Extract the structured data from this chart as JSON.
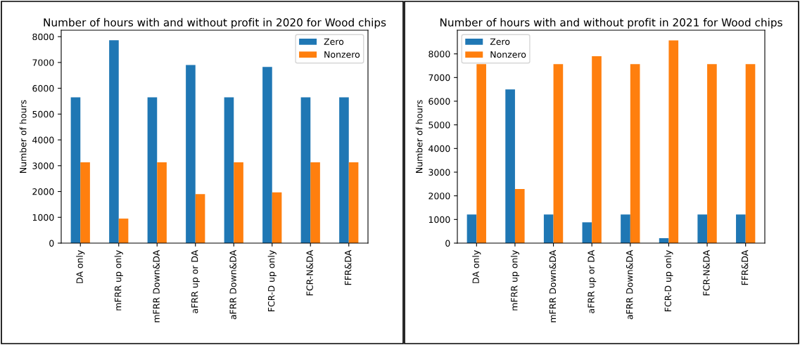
{
  "chart_data": [
    {
      "type": "bar",
      "title": "Number of hours with and without profit in 2020 for Wood chips",
      "ylabel": "Number of hours",
      "categories": [
        "DA only",
        "mFRR up only",
        "mFRR Down&DA",
        "aFRR up or DA",
        "aFRR Down&DA",
        "FCR-D up only",
        "FCR-N&DA",
        "FFR&DA"
      ],
      "series": [
        {
          "name": "Zero",
          "color": "#1f77b4",
          "values": [
            5650,
            7860,
            5650,
            6900,
            5650,
            6830,
            5650,
            5650
          ]
        },
        {
          "name": "Nonzero",
          "color": "#ff7f0e",
          "values": [
            3130,
            950,
            3130,
            1900,
            3130,
            1970,
            3130,
            3130
          ]
        }
      ],
      "ylim": [
        0,
        8250
      ],
      "yticks": [
        0,
        1000,
        2000,
        3000,
        4000,
        5000,
        6000,
        7000,
        8000
      ],
      "legend": "top right",
      "grid": false
    },
    {
      "type": "bar",
      "title": "Number of hours with and without profit in 2021 for Wood chips",
      "ylabel": "Number of hours",
      "categories": [
        "DA only",
        "mFRR up only",
        "mFRR Down&DA",
        "aFRR up or DA",
        "aFRR Down&DA",
        "FCR-D up only",
        "FCR-N&DA",
        "FFR&DA"
      ],
      "series": [
        {
          "name": "Zero",
          "color": "#1f77b4",
          "values": [
            1210,
            6500,
            1210,
            880,
            1210,
            210,
            1210,
            1210
          ]
        },
        {
          "name": "Nonzero",
          "color": "#ff7f0e",
          "values": [
            7570,
            2290,
            7570,
            7900,
            7570,
            8570,
            7570,
            7570
          ]
        }
      ],
      "ylim": [
        0,
        9000
      ],
      "yticks": [
        0,
        1000,
        2000,
        3000,
        4000,
        5000,
        6000,
        7000,
        8000
      ],
      "legend": "top left",
      "grid": false
    }
  ]
}
